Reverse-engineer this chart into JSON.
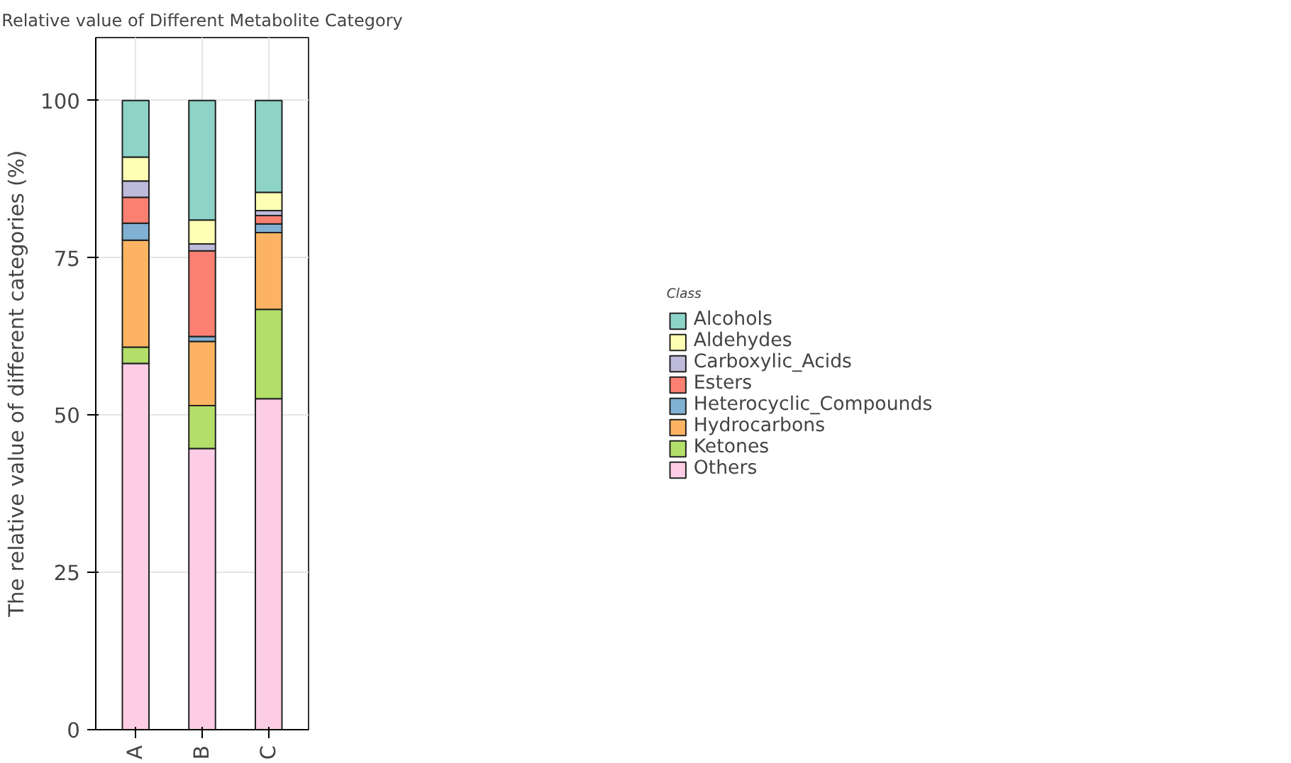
{
  "chart_data": {
    "type": "bar",
    "stacked": true,
    "title": "Relative value of Different Metabolite Category",
    "ylabel": "The relative value of different categories (%)",
    "legend_title": "Class",
    "legend": "right",
    "grid": true,
    "categories": [
      "A",
      "B",
      "C"
    ],
    "ylim": [
      0,
      110
    ],
    "yticks": [
      0,
      25,
      50,
      75,
      100
    ],
    "series": [
      {
        "name": "Others",
        "color": "#fccde5",
        "values": [
          58.2,
          44.7,
          52.6
        ]
      },
      {
        "name": "Ketones",
        "color": "#b3de69",
        "values": [
          2.6,
          6.8,
          14.2
        ]
      },
      {
        "name": "Hydrocarbons",
        "color": "#fdb462",
        "values": [
          17.0,
          10.2,
          12.2
        ]
      },
      {
        "name": "Heterocyclic_Compounds",
        "color": "#80b1d3",
        "values": [
          2.7,
          0.8,
          1.4
        ]
      },
      {
        "name": "Esters",
        "color": "#fb8072",
        "values": [
          4.1,
          13.6,
          1.3
        ]
      },
      {
        "name": "Carboxylic_Acids",
        "color": "#bebada",
        "values": [
          2.6,
          1.1,
          0.8
        ]
      },
      {
        "name": "Aldehydes",
        "color": "#ffffb3",
        "values": [
          3.8,
          3.8,
          2.9
        ]
      },
      {
        "name": "Alcohols",
        "color": "#8dd3c7",
        "values": [
          9.0,
          19.0,
          14.6
        ]
      }
    ]
  }
}
